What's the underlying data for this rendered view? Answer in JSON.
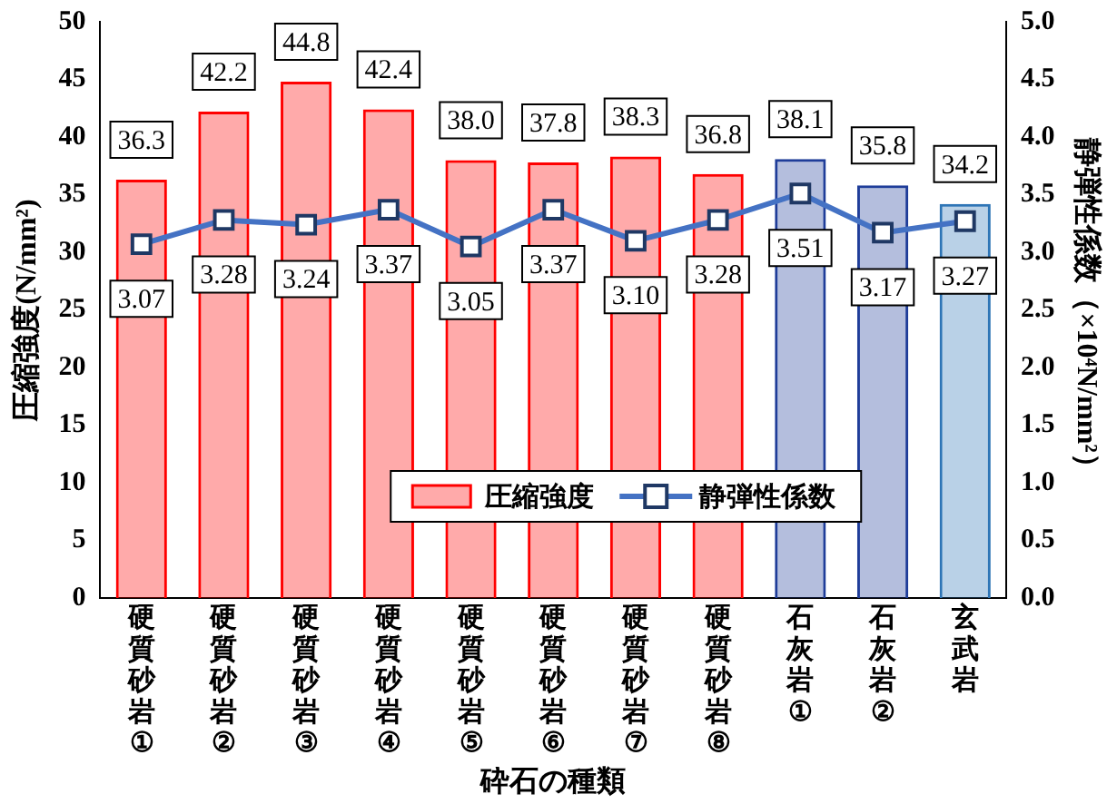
{
  "chart_data": {
    "type": "bar",
    "xlabel": "砕石の種類",
    "ylabel": "圧縮強度(N/mm²)",
    "y2label": "静弾性係数（×10⁴N/mm²）",
    "categories": [
      "硬質砂岩①",
      "硬質砂岩②",
      "硬質砂岩③",
      "硬質砂岩④",
      "硬質砂岩⑤",
      "硬質砂岩⑥",
      "硬質砂岩⑦",
      "硬質砂岩⑧",
      "石灰岩①",
      "石灰岩②",
      "玄武岩"
    ],
    "series": [
      {
        "name": "圧縮強度",
        "colors": [
          "#ff0000",
          "#ff0000",
          "#ff0000",
          "#ff0000",
          "#ff0000",
          "#ff0000",
          "#ff0000",
          "#ff0000",
          "#1f3d99",
          "#1f3d99",
          "#2e75b6"
        ],
        "values": [
          36.3,
          42.2,
          44.8,
          42.4,
          38.0,
          37.8,
          38.3,
          36.8,
          38.1,
          35.8,
          34.2
        ],
        "value_labels": [
          "36.3",
          "42.2",
          "44.8",
          "42.4",
          "38.0",
          "37.8",
          "38.3",
          "36.8",
          "38.1",
          "35.8",
          "34.2"
        ]
      },
      {
        "name": "静弾性係数",
        "type": "line",
        "axis": "y2",
        "color": "#4472c4",
        "marker": "square",
        "values": [
          3.07,
          3.28,
          3.24,
          3.37,
          3.05,
          3.37,
          3.1,
          3.28,
          3.51,
          3.17,
          3.27
        ],
        "value_labels": [
          "3.07",
          "3.28",
          "3.24",
          "3.37",
          "3.05",
          "3.37",
          "3.10",
          "3.28",
          "3.51",
          "3.17",
          "3.27"
        ]
      }
    ],
    "ylim": [
      0,
      50
    ],
    "yticks": [
      0,
      5,
      10,
      15,
      20,
      25,
      30,
      35,
      40,
      45,
      50
    ],
    "y2lim": [
      0,
      5
    ],
    "y2ticks": [
      {
        "value": 0,
        "label": "0.0"
      },
      {
        "value": 0.5,
        "label": "0.5"
      },
      {
        "value": 1,
        "label": "1.0"
      },
      {
        "value": 1.5,
        "label": "1.5"
      },
      {
        "value": 2,
        "label": "2.0"
      },
      {
        "value": 2.5,
        "label": "2.5"
      },
      {
        "value": 3,
        "label": "3.0"
      },
      {
        "value": 3.5,
        "label": "3.5"
      },
      {
        "value": 4,
        "label": "4.0"
      },
      {
        "value": 4.5,
        "label": "4.5"
      },
      {
        "value": 5,
        "label": "5.0"
      }
    ],
    "grid": false,
    "legend": "bottom"
  }
}
